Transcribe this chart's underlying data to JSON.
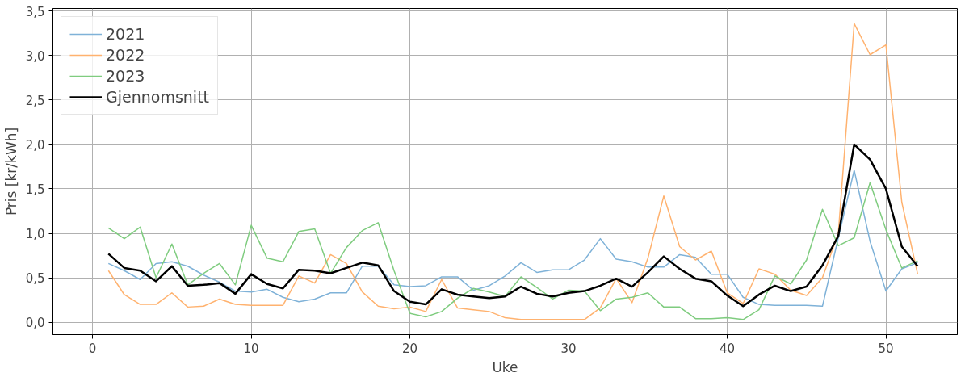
{
  "chart_data": {
    "type": "line",
    "xlabel": "Uke",
    "ylabel": "Pris [kr/kWh]",
    "x": [
      1,
      2,
      3,
      4,
      5,
      6,
      7,
      8,
      9,
      10,
      11,
      12,
      13,
      14,
      15,
      16,
      17,
      18,
      19,
      20,
      21,
      22,
      23,
      24,
      25,
      26,
      27,
      28,
      29,
      30,
      31,
      32,
      33,
      34,
      35,
      36,
      37,
      38,
      39,
      40,
      41,
      42,
      43,
      44,
      45,
      46,
      47,
      48,
      49,
      50,
      51,
      52
    ],
    "series": [
      {
        "name": "2021",
        "color": "#7fb2d8",
        "values": [
          0.66,
          0.58,
          0.48,
          0.66,
          0.68,
          0.63,
          0.53,
          0.45,
          0.35,
          0.34,
          0.37,
          0.28,
          0.23,
          0.26,
          0.33,
          0.33,
          0.63,
          0.63,
          0.42,
          0.4,
          0.41,
          0.51,
          0.51,
          0.36,
          0.41,
          0.52,
          0.67,
          0.56,
          0.59,
          0.59,
          0.7,
          0.94,
          0.71,
          0.68,
          0.62,
          0.62,
          0.76,
          0.73,
          0.54,
          0.54,
          0.28,
          0.2,
          0.19,
          0.19,
          0.19,
          0.18,
          0.95,
          1.71,
          0.91,
          0.35,
          0.6,
          0.67
        ]
      },
      {
        "name": "2022",
        "color": "#ffb26f",
        "values": [
          0.58,
          0.31,
          0.2,
          0.2,
          0.33,
          0.17,
          0.18,
          0.26,
          0.2,
          0.19,
          0.19,
          0.19,
          0.52,
          0.44,
          0.76,
          0.66,
          0.34,
          0.18,
          0.15,
          0.17,
          0.12,
          0.48,
          0.16,
          0.14,
          0.12,
          0.05,
          0.03,
          0.03,
          0.03,
          0.03,
          0.03,
          0.16,
          0.49,
          0.22,
          0.72,
          1.42,
          0.85,
          0.7,
          0.8,
          0.33,
          0.21,
          0.6,
          0.54,
          0.36,
          0.3,
          0.5,
          1.0,
          3.36,
          3.01,
          3.12,
          1.35,
          0.54
        ]
      },
      {
        "name": "2023",
        "color": "#7fcc7f",
        "values": [
          1.06,
          0.94,
          1.07,
          0.5,
          0.88,
          0.42,
          0.55,
          0.66,
          0.42,
          1.09,
          0.72,
          0.68,
          1.02,
          1.05,
          0.55,
          0.84,
          1.03,
          1.12,
          0.58,
          0.1,
          0.06,
          0.12,
          0.27,
          0.38,
          0.34,
          0.29,
          0.51,
          0.39,
          0.26,
          0.36,
          0.35,
          0.13,
          0.26,
          0.28,
          0.33,
          0.17,
          0.17,
          0.04,
          0.04,
          0.05,
          0.03,
          0.14,
          0.52,
          0.43,
          0.7,
          1.27,
          0.86,
          0.95,
          1.57,
          1.04,
          0.61,
          0.69
        ]
      },
      {
        "name": "Gjennomsnitt",
        "color": "#000000",
        "values": [
          0.77,
          0.61,
          0.58,
          0.46,
          0.63,
          0.41,
          0.42,
          0.44,
          0.32,
          0.54,
          0.43,
          0.38,
          0.59,
          0.58,
          0.55,
          0.61,
          0.67,
          0.64,
          0.35,
          0.23,
          0.2,
          0.37,
          0.31,
          0.29,
          0.27,
          0.29,
          0.4,
          0.32,
          0.29,
          0.33,
          0.35,
          0.41,
          0.49,
          0.4,
          0.56,
          0.74,
          0.6,
          0.49,
          0.46,
          0.3,
          0.18,
          0.31,
          0.41,
          0.35,
          0.4,
          0.64,
          0.97,
          2.0,
          1.83,
          1.5,
          0.85,
          0.63
        ]
      }
    ],
    "xlim": [
      -2.5,
      54.5
    ],
    "ylim": [
      -0.14,
      3.53
    ],
    "xticks": [
      0,
      10,
      20,
      30,
      40,
      50
    ],
    "yticks": [
      {
        "value": 0,
        "label": "0,0"
      },
      {
        "value": 0.5,
        "label": "0,5"
      },
      {
        "value": 1,
        "label": "1,0"
      },
      {
        "value": 1.5,
        "label": "1,5"
      },
      {
        "value": 2,
        "label": "2,0"
      },
      {
        "value": 2.5,
        "label": "2,5"
      },
      {
        "value": 3,
        "label": "3,0"
      },
      {
        "value": 3.5,
        "label": "3,5"
      }
    ],
    "grid": true,
    "legend": "top left",
    "marker": "none",
    "line_style": "solid"
  }
}
